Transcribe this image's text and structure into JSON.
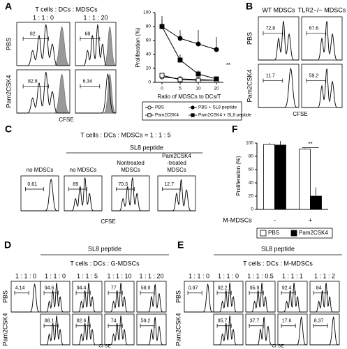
{
  "panels": {
    "A": {
      "letter": "A",
      "header": "T cells : DCs : MDSCs",
      "columns": [
        "1 : 1 : 0",
        "1 : 1 : 20"
      ],
      "rows": [
        "PBS",
        "Pam2CSK4"
      ],
      "gates": [
        [
          "82",
          "68"
        ],
        [
          "82.8",
          "6.34"
        ]
      ],
      "axis_label": "CFSE"
    },
    "B": {
      "letter": "B",
      "columns": [
        "WT MDSCs",
        "TLR2−/− MDSCs"
      ],
      "rows": [
        "PBS",
        "Pam2CSK4"
      ],
      "gates": [
        [
          "72.8",
          "67.6"
        ],
        [
          "11.7",
          "59.2"
        ]
      ],
      "axis_label": "CFSE"
    },
    "C": {
      "letter": "C",
      "header": "T cells : DCs : MDSCs = 1 : 1 : 5",
      "group": "SL8 peptide",
      "columns": [
        [
          "no MDSCs"
        ],
        [
          "no MDSCs"
        ],
        [
          "Nontreated",
          "MDSCs"
        ],
        [
          "Pam2CSK4",
          "-treated",
          "MDSCs"
        ]
      ],
      "gates": [
        "0.61",
        "89",
        "70.3",
        "12.7"
      ],
      "axis_label": "CFSE"
    },
    "D": {
      "letter": "D",
      "group": "SL8 peptide",
      "header": "T cells : DCs : G-MDSCs",
      "columns": [
        "1 : 1 : 0",
        "1 : 1 : 0",
        "1 : 1 : 5",
        "1 : 1 : 10",
        "1 : 1 : 20"
      ],
      "rows": [
        "PBS",
        "Pam2CSK4"
      ],
      "gates_top": [
        "4.14",
        "94.6",
        "94.4",
        "77",
        "58.9"
      ],
      "gates_bottom": [
        "88.1",
        "82.6",
        "74",
        "59.2"
      ],
      "axis_label": "CFSE"
    },
    "E": {
      "letter": "E",
      "group": "SL8 peptide",
      "header": "T cells : DCs : M-MDSCs",
      "columns": [
        "1 : 1 : 0",
        "1 : 1 : 0",
        "1 : 1 : 0.5",
        "1 : 1 : 1",
        "1 : 1 : 2"
      ],
      "rows": [
        "PBS",
        "Pam2CSK4"
      ],
      "gates_top": [
        "0.97",
        "92.2",
        "95.9",
        "92.4",
        "84"
      ],
      "gates_bottom": [
        "95.7",
        "37.7",
        "17.6",
        "8.37"
      ],
      "axis_label": "CFSE"
    }
  },
  "chart_data": [
    {
      "type": "line",
      "y_label": "Proliferation (%)",
      "x_label": "Ratio of MDSCs to DCs/T",
      "annotation": "**",
      "categories": [
        "0",
        "5",
        "10",
        "20"
      ],
      "ylim": [
        0,
        100
      ],
      "yticks": [
        0,
        20,
        40,
        60,
        80,
        100
      ],
      "series": [
        {
          "name": "PBS",
          "color": "#000000",
          "marker": "circle",
          "filled": false,
          "values": [
            8,
            5,
            4,
            3
          ]
        },
        {
          "name": "PBS + SL8 peptide",
          "color": "#000000",
          "marker": "circle",
          "filled": true,
          "values": [
            80,
            63,
            55,
            47
          ],
          "errors": [
            15,
            12,
            20,
            18
          ]
        },
        {
          "name": "Pam2CSK4",
          "color": "#000000",
          "marker": "square",
          "filled": false,
          "values": [
            10,
            4,
            3,
            3
          ]
        },
        {
          "name": "Pam2CSK4 + SL8 peptide",
          "color": "#000000",
          "marker": "square",
          "filled": true,
          "values": [
            80,
            32,
            12,
            5
          ],
          "errors": [
            10,
            8,
            5,
            3
          ]
        }
      ]
    },
    {
      "type": "bar",
      "letter": "F",
      "y_label": "Proliferation (%)",
      "x_label": "M-MDSCs",
      "annotation": "**",
      "categories": [
        "-",
        "+"
      ],
      "ylim": [
        0,
        100
      ],
      "yticks": [
        0,
        20,
        40,
        60,
        80,
        100
      ],
      "series": [
        {
          "name": "PBS",
          "color": "#ffffff",
          "values": [
            98,
            91
          ],
          "errors": [
            2,
            1
          ]
        },
        {
          "name": "Pam2CSK4",
          "color": "#000000",
          "values": [
            97,
            20
          ],
          "errors": [
            6,
            13
          ]
        }
      ]
    }
  ]
}
